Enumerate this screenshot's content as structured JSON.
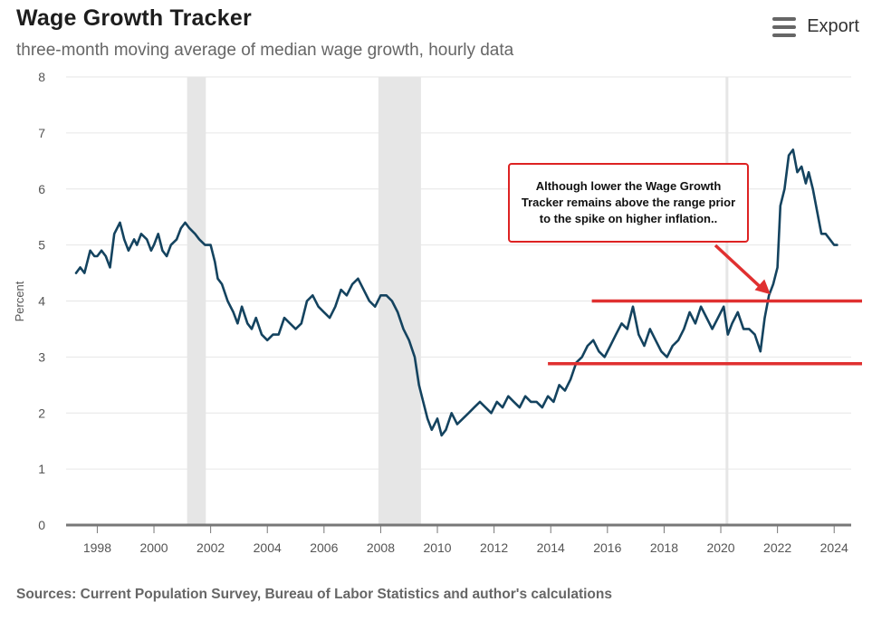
{
  "header": {
    "title": "Wage Growth Tracker",
    "subtitle": "three-month moving average of median wage growth, hourly data",
    "export_label": "Export"
  },
  "footer": {
    "source": "Sources: Current Population Survey, Bureau of Labor Statistics and author's calculations"
  },
  "annotation": {
    "text": "Although lower the Wage Growth Tracker remains above the range prior to the spike on higher inflation..",
    "range_lines": [
      4.0,
      2.88
    ],
    "color": "#e03030"
  },
  "colors": {
    "line": "#14435f",
    "grid": "#e6e6e6",
    "recession": "#e6e6e6",
    "axis": "#777777",
    "annotation": "#e03030"
  },
  "chart_data": {
    "type": "line",
    "title": "Wage Growth Tracker",
    "subtitle": "three-month moving average of median wage growth, hourly data",
    "xlabel": "",
    "ylabel": "Percent",
    "xlim": [
      1996.9,
      2024.6
    ],
    "ylim": [
      0,
      8
    ],
    "yticks": [
      0,
      1,
      2,
      3,
      4,
      5,
      6,
      7,
      8
    ],
    "xticks": [
      1998,
      2000,
      2002,
      2004,
      2006,
      2008,
      2010,
      2012,
      2014,
      2016,
      2018,
      2020,
      2022,
      2024
    ],
    "grid": true,
    "recessions": [
      [
        2001.17,
        2001.83
      ],
      [
        2007.92,
        2009.42
      ],
      [
        2020.17,
        2020.25
      ]
    ],
    "series": [
      {
        "name": "Median wage growth (3-month moving average)",
        "x": [
          1997.25,
          1997.4,
          1997.55,
          1997.75,
          1997.9,
          1998.0,
          1998.15,
          1998.3,
          1998.45,
          1998.6,
          1998.8,
          1998.95,
          1999.1,
          1999.3,
          1999.4,
          1999.55,
          1999.75,
          1999.9,
          2000.0,
          2000.15,
          2000.3,
          2000.45,
          2000.6,
          2000.8,
          2000.95,
          2001.1,
          2001.25,
          2001.45,
          2001.6,
          2001.8,
          2002.0,
          2002.15,
          2002.25,
          2002.4,
          2002.6,
          2002.8,
          2002.95,
          2003.1,
          2003.3,
          2003.45,
          2003.6,
          2003.8,
          2004.0,
          2004.2,
          2004.4,
          2004.6,
          2004.8,
          2005.0,
          2005.2,
          2005.4,
          2005.6,
          2005.8,
          2006.0,
          2006.2,
          2006.4,
          2006.6,
          2006.8,
          2007.0,
          2007.2,
          2007.4,
          2007.6,
          2007.8,
          2008.0,
          2008.2,
          2008.4,
          2008.6,
          2008.8,
          2009.0,
          2009.2,
          2009.35,
          2009.5,
          2009.65,
          2009.8,
          2010.0,
          2010.15,
          2010.3,
          2010.5,
          2010.7,
          2010.9,
          2011.1,
          2011.3,
          2011.5,
          2011.7,
          2011.9,
          2012.1,
          2012.3,
          2012.5,
          2012.7,
          2012.9,
          2013.1,
          2013.3,
          2013.5,
          2013.7,
          2013.9,
          2014.1,
          2014.3,
          2014.5,
          2014.7,
          2014.9,
          2015.1,
          2015.3,
          2015.5,
          2015.7,
          2015.9,
          2016.1,
          2016.3,
          2016.5,
          2016.7,
          2016.9,
          2017.1,
          2017.3,
          2017.5,
          2017.7,
          2017.9,
          2018.1,
          2018.3,
          2018.5,
          2018.7,
          2018.9,
          2019.1,
          2019.3,
          2019.5,
          2019.7,
          2019.9,
          2020.1,
          2020.25,
          2020.4,
          2020.6,
          2020.8,
          2021.0,
          2021.2,
          2021.4,
          2021.55,
          2021.7,
          2021.85,
          2022.0,
          2022.1,
          2022.25,
          2022.4,
          2022.55,
          2022.7,
          2022.85,
          2023.0,
          2023.1,
          2023.25,
          2023.4,
          2023.55,
          2023.7,
          2023.85,
          2024.0,
          2024.1
        ],
        "values": [
          4.5,
          4.6,
          4.5,
          4.9,
          4.8,
          4.8,
          4.9,
          4.8,
          4.6,
          5.2,
          5.4,
          5.1,
          4.9,
          5.1,
          5.0,
          5.2,
          5.1,
          4.9,
          5.0,
          5.2,
          4.9,
          4.8,
          5.0,
          5.1,
          5.3,
          5.4,
          5.3,
          5.2,
          5.1,
          5.0,
          5.0,
          4.7,
          4.4,
          4.3,
          4.0,
          3.8,
          3.6,
          3.9,
          3.6,
          3.5,
          3.7,
          3.4,
          3.3,
          3.4,
          3.4,
          3.7,
          3.6,
          3.5,
          3.6,
          4.0,
          4.1,
          3.9,
          3.8,
          3.7,
          3.9,
          4.2,
          4.1,
          4.3,
          4.4,
          4.2,
          4.0,
          3.9,
          4.1,
          4.1,
          4.0,
          3.8,
          3.5,
          3.3,
          3.0,
          2.5,
          2.2,
          1.9,
          1.7,
          1.9,
          1.6,
          1.7,
          2.0,
          1.8,
          1.9,
          2.0,
          2.1,
          2.2,
          2.1,
          2.0,
          2.2,
          2.1,
          2.3,
          2.2,
          2.1,
          2.3,
          2.2,
          2.2,
          2.1,
          2.3,
          2.2,
          2.5,
          2.4,
          2.6,
          2.9,
          3.0,
          3.2,
          3.3,
          3.1,
          3.0,
          3.2,
          3.4,
          3.6,
          3.5,
          3.9,
          3.4,
          3.2,
          3.5,
          3.3,
          3.1,
          3.0,
          3.2,
          3.3,
          3.5,
          3.8,
          3.6,
          3.9,
          3.7,
          3.5,
          3.7,
          3.9,
          3.4,
          3.6,
          3.8,
          3.5,
          3.5,
          3.4,
          3.1,
          3.7,
          4.1,
          4.3,
          4.6,
          5.7,
          6.0,
          6.6,
          6.7,
          6.3,
          6.4,
          6.1,
          6.3,
          6.0,
          5.6,
          5.2,
          5.2,
          5.1,
          5.0,
          5.0
        ]
      }
    ]
  }
}
